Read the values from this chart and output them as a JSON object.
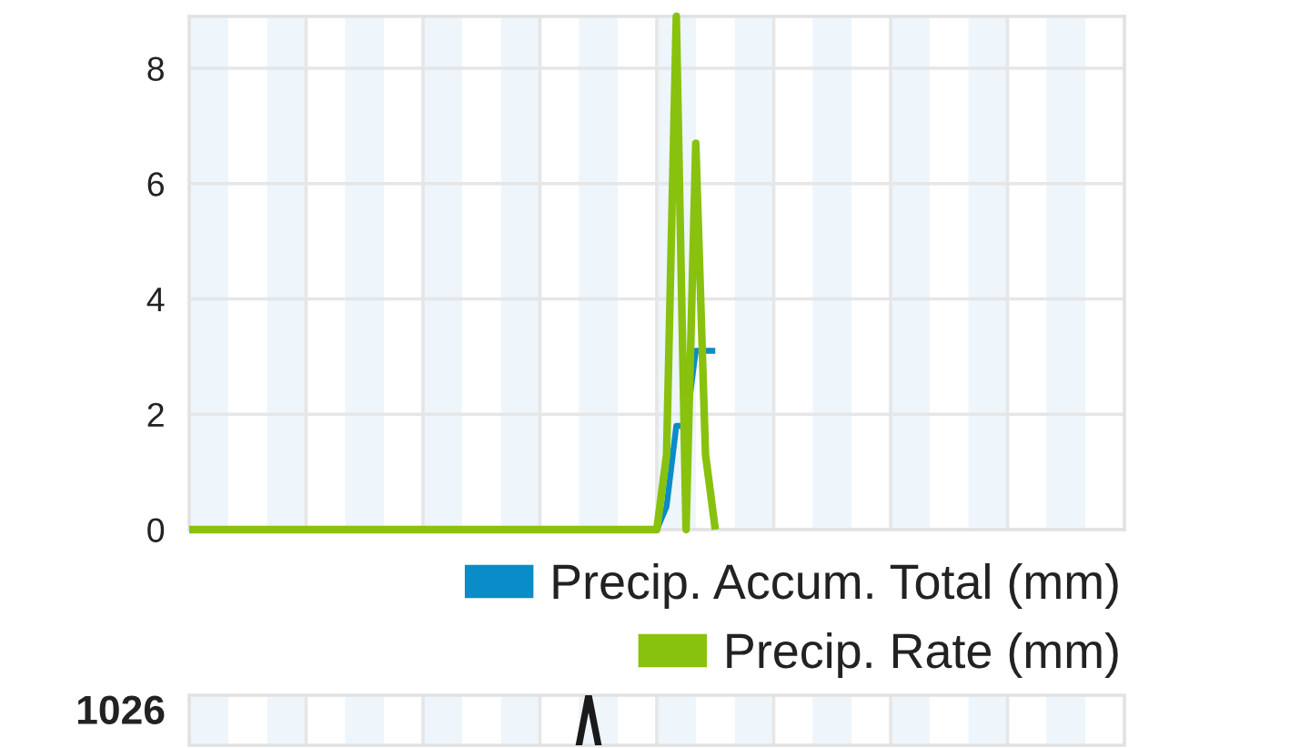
{
  "chart_data": {
    "type": "line",
    "categories": [
      null,
      null,
      null,
      null,
      null,
      null,
      null,
      null,
      null,
      null,
      null,
      null,
      null,
      null,
      null,
      null,
      null,
      null,
      null,
      null,
      null,
      null,
      null,
      null,
      null,
      null,
      null,
      null,
      null,
      null,
      null,
      null,
      null,
      null,
      null,
      null,
      null,
      null,
      null,
      null,
      null,
      null,
      null,
      null,
      null,
      null,
      null,
      null,
      null,
      null,
      null,
      null,
      null,
      null,
      null,
      null,
      null,
      null,
      null,
      null,
      null,
      null,
      null,
      null,
      null,
      null,
      null,
      null,
      null,
      null,
      null,
      null,
      null,
      null,
      null,
      null,
      null,
      null,
      null,
      null,
      null,
      null,
      null,
      null,
      null,
      null,
      null,
      null,
      null,
      null,
      null,
      null,
      null,
      null,
      null,
      null,
      null
    ],
    "ylim": [
      0,
      8.9
    ],
    "yticks": [
      0,
      2,
      4,
      6,
      8
    ],
    "grid": true,
    "legend": "bottom right",
    "annotations": [
      "1026"
    ],
    "series": [
      {
        "name": "Precip. Accum. Total (mm)",
        "color": "#0a8cc8",
        "values": [
          null,
          null,
          null,
          null,
          null,
          null,
          null,
          null,
          null,
          null,
          null,
          null,
          null,
          null,
          null,
          null,
          null,
          null,
          null,
          null,
          null,
          null,
          null,
          null,
          null,
          null,
          null,
          null,
          null,
          null,
          null,
          null,
          null,
          null,
          null,
          null,
          null,
          null,
          null,
          null,
          null,
          null,
          null,
          null,
          null,
          null,
          null,
          null,
          0,
          0.4,
          1.8,
          1.8,
          3.1,
          3.1,
          3.1,
          null,
          null,
          null,
          null,
          null,
          null,
          null,
          null,
          null,
          null,
          null,
          null,
          null,
          null,
          null,
          null,
          null,
          null,
          null,
          null,
          null,
          null,
          null,
          null,
          null,
          null,
          null,
          null,
          null,
          null,
          null,
          null,
          null,
          null,
          null,
          null,
          null,
          null,
          null,
          null,
          null,
          null
        ]
      },
      {
        "name": "Precip. Rate (mm)",
        "color": "#88c20e",
        "values": [
          0,
          0,
          0,
          0,
          0,
          0,
          0,
          0,
          0,
          0,
          0,
          0,
          0,
          0,
          0,
          0,
          0,
          0,
          0,
          0,
          0,
          0,
          0,
          0,
          0,
          0,
          0,
          0,
          0,
          0,
          0,
          0,
          0,
          0,
          0,
          0,
          0,
          0,
          0,
          0,
          0,
          0,
          0,
          0,
          0,
          0,
          0,
          0,
          0,
          1.3,
          8.9,
          0,
          6.7,
          1.3,
          0,
          null,
          null,
          null,
          null,
          null,
          null,
          null,
          null,
          null,
          null,
          null,
          null,
          null,
          null,
          null,
          null,
          null,
          null,
          null,
          null,
          null,
          null,
          null,
          null,
          null,
          null,
          null,
          null,
          null,
          null,
          null,
          null,
          null,
          null,
          null,
          null,
          null,
          null,
          null,
          null,
          null,
          null
        ]
      }
    ]
  }
}
